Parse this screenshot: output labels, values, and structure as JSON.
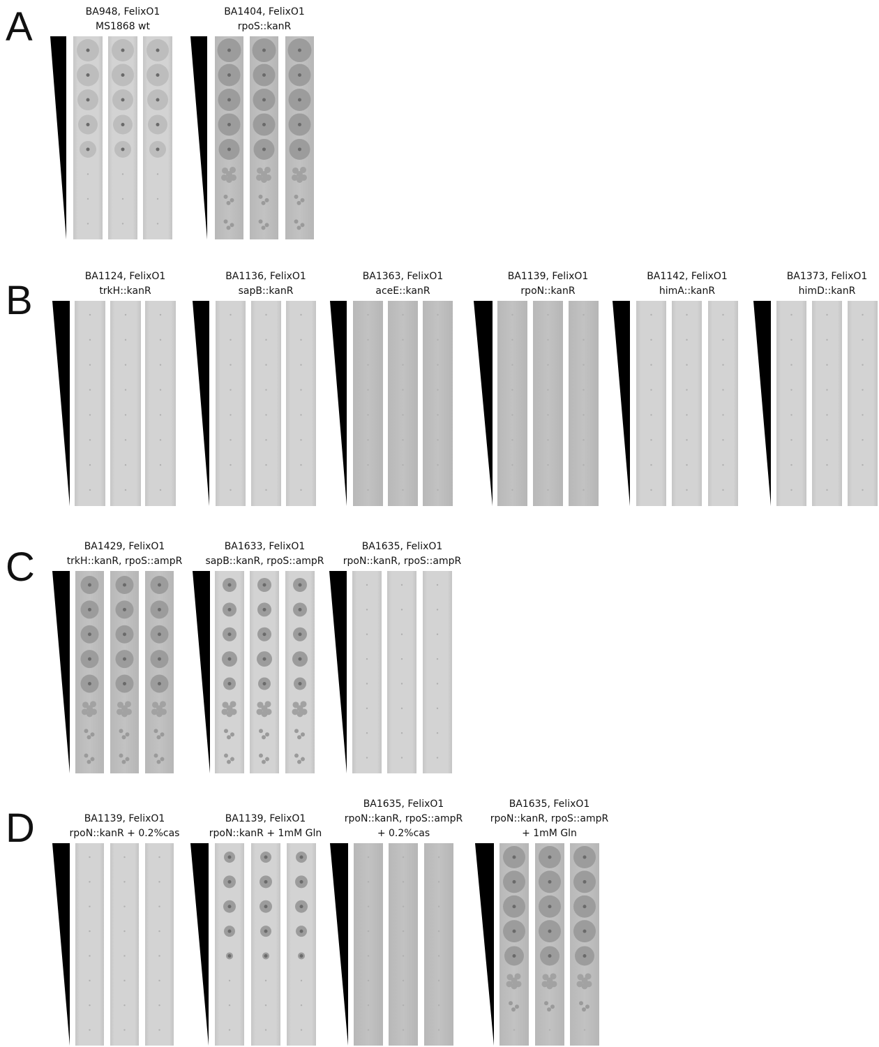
{
  "panels": [
    {
      "label": "A",
      "groups": [
        {
          "lines": [
            "BA948, FelixO1",
            "MS1868 wt"
          ]
        },
        {
          "lines": [
            "BA1404, FelixO1",
            "rpoS::kanR"
          ]
        }
      ]
    },
    {
      "label": "B",
      "groups": [
        {
          "lines": [
            "BA1124, FelixO1",
            "trkH::kanR"
          ]
        },
        {
          "lines": [
            "BA1136, FelixO1",
            "sapB::kanR"
          ]
        },
        {
          "lines": [
            "BA1363, FelixO1",
            "aceE::kanR"
          ]
        },
        {
          "lines": [
            "BA1139, FelixO1",
            "rpoN::kanR"
          ]
        },
        {
          "lines": [
            "BA1142, FelixO1",
            "himA::kanR"
          ]
        },
        {
          "lines": [
            "BA1373, FelixO1",
            "himD::kanR"
          ]
        }
      ]
    },
    {
      "label": "C",
      "groups": [
        {
          "lines": [
            "BA1429, FelixO1",
            "trkH::kanR, rpoS::ampR"
          ]
        },
        {
          "lines": [
            "BA1633, FelixO1",
            "sapB::kanR, rpoS::ampR"
          ]
        },
        {
          "lines": [
            "BA1635, FelixO1",
            "rpoN::kanR, rpoS::ampR"
          ]
        }
      ]
    },
    {
      "label": "D",
      "groups": [
        {
          "lines": [
            "BA1139, FelixO1",
            "rpoN::kanR + 0.2%cas"
          ]
        },
        {
          "lines": [
            "BA1139, FelixO1",
            "rpoN::kanR + 1mM Gln"
          ]
        },
        {
          "lines": [
            "BA1635, FelixO1",
            "rpoN::kanR, rpoS::ampR",
            "+ 0.2%cas"
          ]
        },
        {
          "lines": [
            "BA1635, FelixO1",
            "rpoN::kanR, rpoS::ampR",
            "+ 1mM Gln"
          ]
        }
      ]
    }
  ]
}
